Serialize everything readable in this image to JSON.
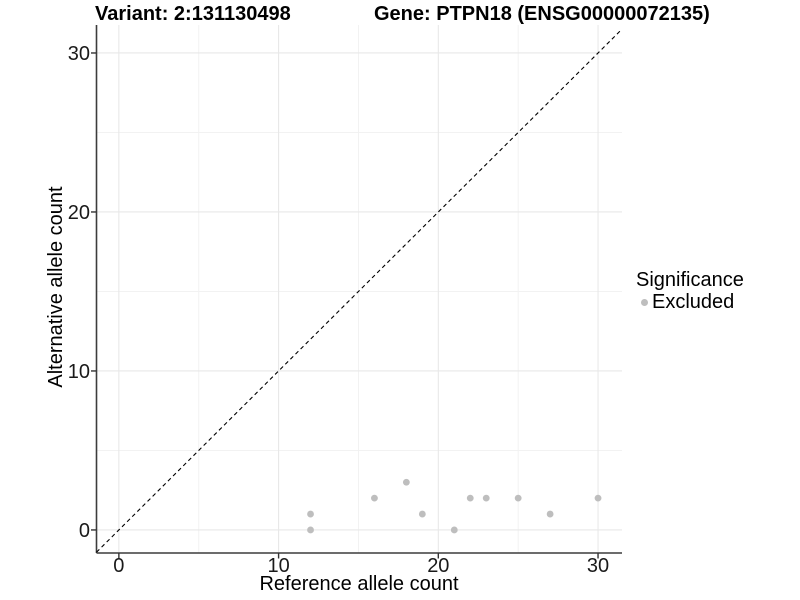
{
  "chart_data": {
    "type": "scatter",
    "title_left": "Variant: 2:131130498",
    "title_right": "Gene: PTPN18 (ENSG00000072135)",
    "xlabel": "Reference allele count",
    "ylabel": "Alternative allele count",
    "xlim": [
      -1.4,
      31.5
    ],
    "ylim": [
      -1.45,
      31.76
    ],
    "x_ticks": [
      0,
      10,
      20,
      30
    ],
    "y_ticks": [
      0,
      10,
      20,
      30
    ],
    "x_minor_ticks": [
      5,
      15,
      25
    ],
    "y_minor_ticks": [
      5,
      15,
      25
    ],
    "grid": "major and minor gridlines on white panel",
    "reference_line": {
      "type": "identity y=x",
      "style": "dashed",
      "color": "#000000"
    },
    "series": [
      {
        "name": "Excluded",
        "color": "#bebebe",
        "points": [
          [
            12,
            0
          ],
          [
            12,
            1
          ],
          [
            16,
            2
          ],
          [
            18,
            3
          ],
          [
            19,
            1
          ],
          [
            21,
            0
          ],
          [
            22,
            2
          ],
          [
            23,
            2
          ],
          [
            25,
            2
          ],
          [
            27,
            1
          ],
          [
            30,
            2
          ]
        ]
      }
    ],
    "legend": {
      "title": "Significance",
      "position": "right-middle",
      "items": [
        {
          "label": "Excluded",
          "color": "#bebebe",
          "marker": "filled-circle"
        }
      ]
    },
    "colors": {
      "point": "#bebebe",
      "grid_major": "#e8e8e8",
      "grid_minor": "#f1f1f1",
      "axis_line": "#3c3c3c",
      "tick_mark": "#333333",
      "text": "#000000"
    }
  }
}
